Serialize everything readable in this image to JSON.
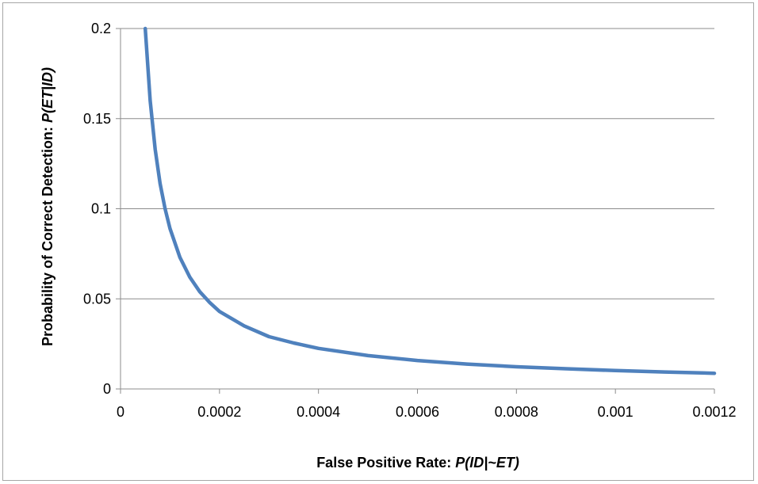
{
  "chart_data": {
    "type": "line",
    "title": "",
    "xlabel_prefix": "False Positive Rate: ",
    "xlabel_math": "P(ID|~ET)",
    "ylabel_prefix": "Probability of Correct Detection: ",
    "ylabel_math": "P(ET|ID)",
    "xlim": [
      0,
      0.0012
    ],
    "ylim": [
      0,
      0.2
    ],
    "x_ticks": [
      "0",
      "0.0002",
      "0.0004",
      "0.0006",
      "0.0008",
      "0.001",
      "0.0012"
    ],
    "y_ticks": [
      "0",
      "0.05",
      "0.1",
      "0.15",
      "0.2"
    ],
    "grid": "horizontal",
    "legend": "none",
    "series": [
      {
        "color": "#4f81bd",
        "x": [
          5e-05,
          6e-05,
          7e-05,
          8e-05,
          9e-05,
          0.0001,
          0.00012,
          0.00014,
          0.00016,
          0.00018,
          0.0002,
          0.00025,
          0.0003,
          0.00035,
          0.0004,
          0.0005,
          0.0006,
          0.0007,
          0.0008,
          0.0009,
          0.001,
          0.0011,
          0.0012
        ],
        "y": [
          0.2,
          0.16,
          0.133,
          0.114,
          0.1,
          0.089,
          0.073,
          0.062,
          0.054,
          0.048,
          0.043,
          0.035,
          0.029,
          0.0255,
          0.0225,
          0.0185,
          0.0158,
          0.0138,
          0.0123,
          0.0112,
          0.0102,
          0.0094,
          0.0087
        ]
      }
    ]
  }
}
